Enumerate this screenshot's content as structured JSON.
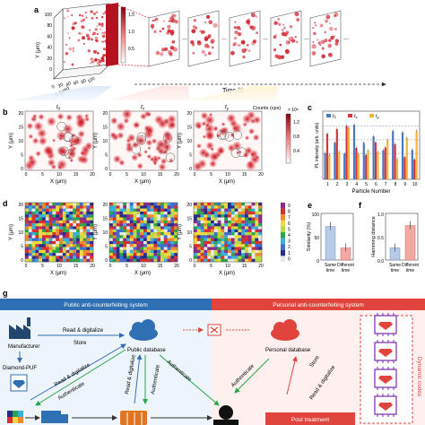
{
  "panel_a": {
    "label": "a",
    "colorbar_ticks": [
      "1.5",
      "1.0",
      "0.5"
    ],
    "y_ticks": [
      "100",
      "80",
      "60",
      "40",
      "20",
      "0"
    ],
    "x_ticks": [
      "0",
      "20",
      "40",
      "60",
      "80",
      "100"
    ],
    "ylabel": "Y (μm)",
    "xlabel": "X (μm)",
    "ellipsis": "...",
    "time_label": "Time (t)"
  },
  "panel_b": {
    "label": "b",
    "titles": [
      "t0",
      "tx",
      "ty"
    ],
    "ylabel": "Y (μm)",
    "xlabel": "X (μm)",
    "ticks": [
      "0",
      "5",
      "10",
      "15",
      "20"
    ],
    "colorbar_title": "Counts (cps)",
    "colorbar_exp": "× 10⁶",
    "colorbar_ticks": [
      "1.2",
      "0.8",
      "0.4"
    ]
  },
  "panel_c": {
    "label": "c",
    "ylabel": "PL intensity (arb. units)",
    "xlabel": "Particle Number",
    "legend": [
      "t0",
      "tx",
      "ty"
    ],
    "colors": {
      "t0": "#4a78c2",
      "tx": "#d8343c",
      "ty": "#f0b43c"
    },
    "x_ticks": [
      "1",
      "2",
      "3",
      "4",
      "5",
      "6",
      "7",
      "8",
      "9",
      "10"
    ]
  },
  "panel_d": {
    "label": "d",
    "ylabel": "Y (μm)",
    "xlabel": "X (μm)",
    "ticks": [
      "0",
      "5",
      "10",
      "15",
      "20"
    ],
    "colorbar_ticks": [
      "9",
      "8",
      "7",
      "6",
      "5",
      "4",
      "3",
      "2",
      "1",
      "0"
    ]
  },
  "panel_e": {
    "label": "e",
    "ylabel": "Similarity (%)",
    "y_ticks": [
      "100",
      "50",
      "0"
    ],
    "categories": [
      "Same time",
      "Different time"
    ],
    "values": [
      72,
      26
    ]
  },
  "panel_f": {
    "label": "f",
    "ylabel": "Hamming distance",
    "y_ticks": [
      "1.0",
      "0.5",
      "0.0"
    ],
    "categories": [
      "Same time",
      "Different time"
    ],
    "values": [
      0.26,
      0.74
    ]
  },
  "panel_g": {
    "label": "g",
    "public_header": "Public anti-counterfeiting system",
    "personal_header": "Personal anti-counterfeiting system",
    "manufacturer": "Manufacturer",
    "public_db": "Public database",
    "personal_db": "Personal database",
    "read_digitalize_1": "Read & digitalize",
    "store_1": "Store",
    "diamond_puf": "Diamond-PUF",
    "read_digitalize_2": "Read & digitalize",
    "authenticate_1": "Authenticate",
    "read_digitalize_3": "Read & digitalize",
    "authenticate_2": "Authenticate",
    "authenticate_3": "Authenticate",
    "authenticate_4": "Authenticate",
    "store_2": "Store",
    "read_digitalize_4": "Read & digitalize",
    "post_treatment": "Post treatment",
    "dynamic_codes": "Dynamic codes",
    "public_color": "#2f6fb3",
    "personal_color": "#e0443c"
  }
}
